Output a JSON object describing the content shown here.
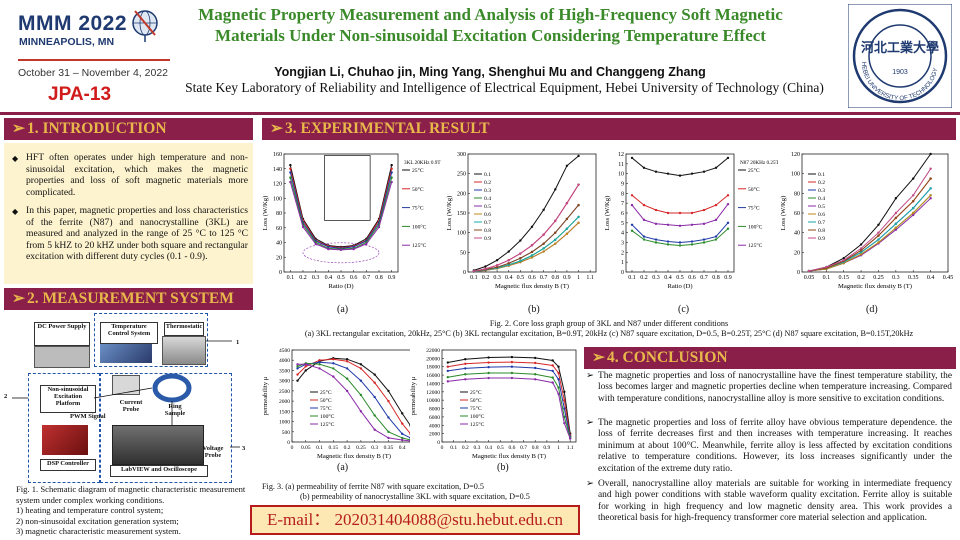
{
  "header": {
    "conf_name": "MMM 2022",
    "conf_city": "MINNEAPOLIS, MN",
    "conf_dates": "October 31 – November 4, 2022",
    "paper_id": "JPA-13",
    "title": "Magnetic Property Measurement and Analysis of High-Frequency Soft Magnetic Materials Under Non-sinusoidal Excitation Considering Temperature Effect",
    "authors": "Yongjian Li, Chuhao jin, Ming Yang, Shenghui Mu and Changgeng Zhang",
    "affiliation": "State Key Laboratory of Reliability and Intelligence of Electrical Equipment, Hebei University of Technology (China)",
    "seal_text": "HEBEI UNIVERSITY OF TECHNOLOGY",
    "seal_year": "1903"
  },
  "colors": {
    "accent": "#8a1f4a",
    "section_text": "#e8b84a",
    "title": "#3a8a2a",
    "red": "#d11a1a",
    "intro_bg": "#fdf3cf"
  },
  "sections": {
    "intro": {
      "heading": "1. INTRODUCTION",
      "bullets": [
        "HFT often operates under high temperature and non-sinusoidal excitation, which makes the magnetic properties and loss of soft magnetic materials more complicated.",
        "In this paper, magnetic properties and loss characteristics of the ferrite (N87) and nanocrystalline (3KL) are measured and analyzed in the range of 25 °C to 125 °C from 5 kHZ to 20 kHZ under both square and rectangular excitation with different duty cycles (0.1 - 0.9)."
      ]
    },
    "measurement": {
      "heading": "2. MEASUREMENT SYSTEM",
      "blocks": {
        "dc": "DC Power Supply",
        "tcs": "Temperature Control System",
        "thermostat": "Thermostatic",
        "nse": "Non-sinusoidal Excitation Platform",
        "cp": "Current Probe",
        "ring": "Ring Sample",
        "pwm": "PWM Signal",
        "dsp": "DSP Controller",
        "lab": "LabVIEW and Oscilloscope",
        "vp": "Voltage Probe",
        "n1": "1",
        "n2": "2",
        "n3": "3"
      },
      "caption_lines": [
        "Fig. 1.  Schematic diagram of magnetic characteristic measurement system under complex working conditions.",
        "1) heating and temperature control system;",
        "2) non-sinusoidal excitation generation system;",
        "3) magnetic characteristic measurement system."
      ]
    },
    "results": {
      "heading": "3. EXPERIMENTAL RESULT",
      "fig2_caption_1": "Fig. 2. Core loss graph group of 3KL and N87 under different conditions",
      "fig2_caption_2": "(a) 3KL rectangular excitation, 20kHz, 25°C  (b) 3KL rectangular excitation, B=0.9T, 20kHz  (c) N87 square excitation, D=0.5, B=0.25T, 25°C  (d) N87 square excitation, B=0.15T,20kHz",
      "fig3_caption_1": "Fig. 3. (a) permeability of ferrite N87 with square excitation, D=0.5",
      "fig3_caption_2": "(b) permeability of nanocrystalline 3KL with square excitation, D=0.5",
      "sub_a": "(a)",
      "sub_b": "(b)",
      "sub_c": "(c)",
      "sub_d": "(d)"
    },
    "conclusion": {
      "heading": "4. CONCLUSION",
      "items": [
        "The magnetic properties and loss of nanocrystalline have the finest temperature stability, the loss becomes larger and magnetic properties decline when temperature increasing. Compared with temperature conditions, nanocrystalline alloy is more sensitive to excitation conditions.",
        "The magnetic properties and loss of ferrite alloy have obvious temperature dependence. the loss of ferrite decreases first and then increases with temperature increasing. It reaches minimum at about 100°C. Meanwhile, ferrite alloy is less affected by excitation conditions relative to temperature conditions. However, its loss increases significantly under the excitation of the extreme duty ratio.",
        "Overall, nanocrystalline alloy materials are suitable for working in intermediate frequency and high power conditions with stable waveform quality excitation. Ferrite alloy is suitable for working in high frequency and low magnetic density area. This work provides a theoretical basis for high-frequency transformer core material selection and application."
      ]
    }
  },
  "email": "E-mail：  202031404088@stu.hebut.edu.cn",
  "chart_data": [
    {
      "id": "fig2a",
      "type": "line",
      "xlabel": "Ratio (D)",
      "ylabel": "Loss (W/Kg)",
      "xlim": [
        0.05,
        0.95
      ],
      "ylim": [
        0,
        160
      ],
      "xticks": [
        0.1,
        0.2,
        0.3,
        0.4,
        0.5,
        0.6,
        0.7,
        0.8,
        0.9
      ],
      "yticks": [
        0,
        20,
        40,
        60,
        80,
        100,
        120,
        140,
        160
      ],
      "legend_title": "3KL 20KHz 0.9T",
      "x": [
        0.1,
        0.2,
        0.3,
        0.4,
        0.5,
        0.6,
        0.7,
        0.8,
        0.9
      ],
      "series": [
        {
          "name": "25°C",
          "color": "#111111",
          "values": [
            145,
            72,
            45,
            36,
            34,
            36,
            45,
            72,
            145
          ]
        },
        {
          "name": "50°C",
          "color": "#d62728",
          "values": [
            140,
            70,
            43,
            35,
            33,
            35,
            43,
            70,
            140
          ]
        },
        {
          "name": "75°C",
          "color": "#1f3aa8",
          "values": [
            135,
            67,
            42,
            34,
            32,
            34,
            42,
            67,
            135
          ]
        },
        {
          "name": "100°C",
          "color": "#2a8a2a",
          "values": [
            128,
            64,
            40,
            32,
            31,
            32,
            40,
            64,
            128
          ]
        },
        {
          "name": "125°C",
          "color": "#8a2aa8",
          "values": [
            122,
            61,
            38,
            31,
            30,
            31,
            38,
            61,
            122
          ]
        }
      ]
    },
    {
      "id": "fig2b",
      "type": "line",
      "xlabel": "Magnetic flux density  B (T)",
      "ylabel": "Loss (W/Kg)",
      "xlim": [
        0.05,
        1.15
      ],
      "ylim": [
        0,
        300
      ],
      "xticks": [
        0.1,
        0.2,
        0.3,
        0.4,
        0.5,
        0.6,
        0.7,
        0.8,
        0.9,
        1.0,
        1.1
      ],
      "yticks": [
        0,
        50,
        100,
        150,
        200,
        250,
        300
      ],
      "x": [
        0.1,
        0.2,
        0.3,
        0.4,
        0.5,
        0.6,
        0.7,
        0.8,
        0.9,
        1.0
      ],
      "series": [
        {
          "name": "0.1",
          "color": "#111111",
          "values": [
            4,
            14,
            30,
            52,
            80,
            115,
            158,
            210,
            270,
            295
          ]
        },
        {
          "name": "0.2",
          "color": "#d62728",
          "values": [
            2,
            8,
            17,
            30,
            47,
            68,
            95,
            130,
            175,
            222
          ]
        },
        {
          "name": "0.3",
          "color": "#1f3aa8",
          "values": [
            2,
            6,
            12,
            22,
            35,
            51,
            72,
            100,
            135,
            170
          ]
        },
        {
          "name": "0.4",
          "color": "#2a8a2a",
          "values": [
            1,
            5,
            10,
            18,
            28,
            42,
            60,
            82,
            110,
            140
          ]
        },
        {
          "name": "0.5",
          "color": "#8a2aa8",
          "values": [
            1,
            4,
            9,
            16,
            25,
            37,
            52,
            72,
            97,
            125
          ]
        },
        {
          "name": "0.6",
          "color": "#c08a1a",
          "values": [
            1,
            4,
            9,
            16,
            25,
            37,
            52,
            72,
            97,
            125
          ]
        },
        {
          "name": "0.7",
          "color": "#1aa8a8",
          "values": [
            1,
            5,
            10,
            18,
            28,
            42,
            60,
            82,
            110,
            140
          ]
        },
        {
          "name": "0.8",
          "color": "#8a4a1a",
          "values": [
            2,
            6,
            12,
            22,
            35,
            51,
            72,
            100,
            135,
            170
          ]
        },
        {
          "name": "0.9",
          "color": "#c04a8a",
          "values": [
            2,
            8,
            17,
            30,
            47,
            68,
            95,
            130,
            175,
            222
          ]
        }
      ]
    },
    {
      "id": "fig2c",
      "type": "line",
      "xlabel": "Ratio (D)",
      "ylabel": "Loss (W/Kg)",
      "xlim": [
        0.05,
        0.95
      ],
      "ylim": [
        0,
        12
      ],
      "xticks": [
        0.1,
        0.2,
        0.3,
        0.4,
        0.5,
        0.6,
        0.7,
        0.8,
        0.9
      ],
      "yticks": [
        0,
        1,
        2,
        3,
        4,
        5,
        6,
        7,
        8,
        9,
        10,
        11,
        12
      ],
      "legend_title": "N87 20KHz 0.25T",
      "x": [
        0.1,
        0.2,
        0.3,
        0.4,
        0.5,
        0.6,
        0.7,
        0.8,
        0.9
      ],
      "series": [
        {
          "name": "25°C",
          "color": "#111111",
          "values": [
            11.6,
            10.6,
            10.2,
            10.0,
            9.8,
            10.0,
            10.2,
            10.6,
            11.6
          ]
        },
        {
          "name": "50°C",
          "color": "#d62728",
          "values": [
            7.8,
            6.8,
            6.3,
            6.0,
            6.0,
            6.0,
            6.3,
            6.8,
            7.8
          ]
        },
        {
          "name": "75°C",
          "color": "#1f3aa8",
          "values": [
            4.8,
            3.6,
            3.3,
            3.1,
            3.0,
            3.1,
            3.3,
            3.6,
            5.0
          ]
        },
        {
          "name": "100°C",
          "color": "#2a8a2a",
          "values": [
            4.2,
            3.3,
            3.0,
            2.8,
            2.7,
            2.8,
            3.0,
            3.3,
            4.4
          ]
        },
        {
          "name": "125°C",
          "color": "#8a2aa8",
          "values": [
            6.8,
            5.3,
            4.9,
            4.8,
            4.7,
            4.8,
            4.9,
            5.3,
            6.9
          ]
        }
      ]
    },
    {
      "id": "fig2d",
      "type": "line",
      "xlabel": "Magnetic flux density  B (T)",
      "ylabel": "Loss (W/Kg)",
      "xlim": [
        0.03,
        0.45
      ],
      "ylim": [
        0,
        120
      ],
      "xticks": [
        0.05,
        0.1,
        0.15,
        0.2,
        0.25,
        0.3,
        0.35,
        0.4,
        0.45
      ],
      "yticks": [
        0,
        20,
        40,
        60,
        80,
        100,
        120
      ],
      "x": [
        0.05,
        0.1,
        0.15,
        0.2,
        0.25,
        0.3,
        0.35,
        0.4
      ],
      "series": [
        {
          "name": "0.1",
          "color": "#111111",
          "values": [
            1,
            5,
            14,
            28,
            48,
            75,
            95,
            140
          ]
        },
        {
          "name": "0.2",
          "color": "#d62728",
          "values": [
            1,
            4,
            11,
            22,
            37,
            55,
            72,
            95
          ]
        },
        {
          "name": "0.3",
          "color": "#1f3aa8",
          "values": [
            1,
            4,
            10,
            20,
            33,
            49,
            65,
            85
          ]
        },
        {
          "name": "0.4",
          "color": "#2a8a2a",
          "values": [
            1,
            3,
            9,
            18,
            30,
            45,
            60,
            78
          ]
        },
        {
          "name": "0.5",
          "color": "#8a2aa8",
          "values": [
            1,
            3,
            9,
            17,
            29,
            43,
            58,
            75
          ]
        },
        {
          "name": "0.6",
          "color": "#c08a1a",
          "values": [
            1,
            3,
            9,
            18,
            30,
            45,
            60,
            78
          ]
        },
        {
          "name": "0.7",
          "color": "#1aa8a8",
          "values": [
            1,
            4,
            10,
            20,
            33,
            49,
            65,
            85
          ]
        },
        {
          "name": "0.8",
          "color": "#8a4a1a",
          "values": [
            1,
            4,
            11,
            22,
            37,
            55,
            72,
            95
          ]
        },
        {
          "name": "0.9",
          "color": "#c04a8a",
          "values": [
            1,
            5,
            12,
            24,
            40,
            60,
            78,
            105
          ]
        }
      ]
    },
    {
      "id": "fig3a",
      "type": "line",
      "xlabel": "Magnetic flux density  B (T)",
      "ylabel": "permeability μ",
      "xlim": [
        0,
        0.45
      ],
      "ylim": [
        0,
        4500
      ],
      "xticks": [
        0,
        0.05,
        0.1,
        0.15,
        0.2,
        0.25,
        0.3,
        0.35,
        0.4,
        0.45
      ],
      "yticks": [
        0,
        500,
        1000,
        1500,
        2000,
        2500,
        3000,
        3500,
        4000,
        4500
      ],
      "x": [
        0.02,
        0.05,
        0.1,
        0.15,
        0.2,
        0.25,
        0.3,
        0.35,
        0.4,
        0.43
      ],
      "series": [
        {
          "name": "25°C",
          "color": "#111111",
          "values": [
            3000,
            3500,
            3950,
            4100,
            4050,
            3800,
            3300,
            2500,
            1400,
            800
          ]
        },
        {
          "name": "50°C",
          "color": "#d62728",
          "values": [
            3300,
            3700,
            4000,
            4050,
            3950,
            3600,
            2900,
            2000,
            900,
            400
          ]
        },
        {
          "name": "75°C",
          "color": "#1f3aa8",
          "values": [
            3600,
            3800,
            3900,
            3850,
            3600,
            3000,
            2200,
            1200,
            400,
            200
          ]
        },
        {
          "name": "100°C",
          "color": "#2a8a2a",
          "values": [
            3700,
            3850,
            3800,
            3600,
            3100,
            2300,
            1300,
            500,
            200,
            100
          ]
        },
        {
          "name": "125°C",
          "color": "#8a2aa8",
          "values": [
            3800,
            3800,
            3600,
            3200,
            2500,
            1500,
            600,
            200,
            100,
            50
          ]
        }
      ]
    },
    {
      "id": "fig3b",
      "type": "line",
      "xlabel": "Magnetic flux density  B (T)",
      "ylabel": "permeability μ",
      "xlim": [
        0,
        1.15
      ],
      "ylim": [
        0,
        22000
      ],
      "xticks": [
        0,
        0.1,
        0.2,
        0.3,
        0.4,
        0.5,
        0.6,
        0.7,
        0.8,
        0.9,
        1.0,
        1.1
      ],
      "yticks": [
        0,
        2000,
        4000,
        6000,
        8000,
        10000,
        12000,
        14000,
        16000,
        18000,
        20000,
        22000
      ],
      "x": [
        0.05,
        0.2,
        0.4,
        0.6,
        0.8,
        0.95,
        1.0,
        1.05,
        1.1
      ],
      "series": [
        {
          "name": "25°C",
          "color": "#111111",
          "values": [
            19000,
            19800,
            20200,
            20300,
            20100,
            19500,
            18000,
            12000,
            2000
          ]
        },
        {
          "name": "50°C",
          "color": "#d62728",
          "values": [
            18000,
            18700,
            19000,
            19100,
            18900,
            18300,
            16500,
            10000,
            1500
          ]
        },
        {
          "name": "75°C",
          "color": "#1f3aa8",
          "values": [
            17000,
            17600,
            17900,
            18000,
            17700,
            17000,
            15000,
            8000,
            1200
          ]
        },
        {
          "name": "100°C",
          "color": "#2a8a2a",
          "values": [
            15500,
            16200,
            16500,
            16500,
            16200,
            15400,
            13000,
            6000,
            1000
          ]
        },
        {
          "name": "125°C",
          "color": "#8a2aa8",
          "values": [
            14500,
            15000,
            15300,
            15300,
            15000,
            14200,
            11500,
            4500,
            800
          ]
        }
      ]
    }
  ]
}
